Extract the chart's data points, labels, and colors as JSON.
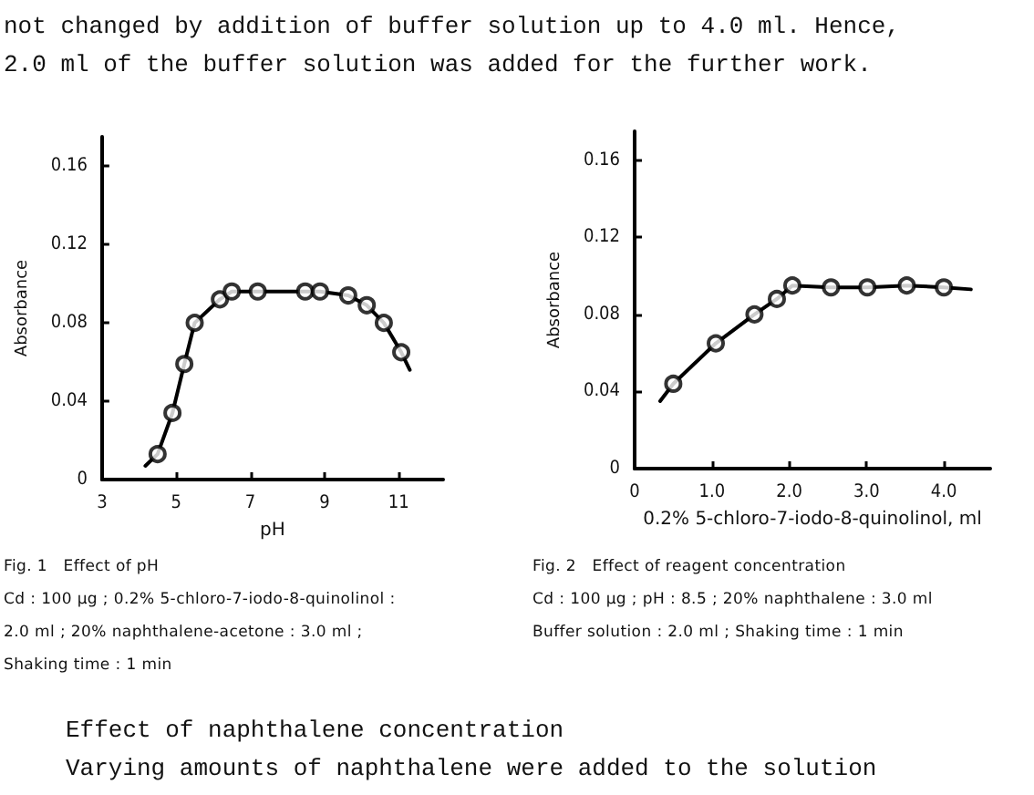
{
  "chart_data": [
    {
      "type": "other",
      "annotations": [
        "not changed by addition of buffer solution up to 4.0 ml. Hence,",
        "2.0 ml of the buffer solution was added for the further work."
      ]
    },
    {
      "type": "line",
      "title": "Fig. 1   Effect of pH",
      "xlabel": "pH",
      "ylabel": "Absorbance",
      "xlim": [
        3,
        12.2
      ],
      "ylim": [
        0,
        0.175
      ],
      "xticks": [
        3,
        5,
        7,
        9,
        11
      ],
      "yticks": [
        0,
        0.04,
        0.08,
        0.12,
        0.16
      ],
      "grid": false,
      "annotations": [
        "Cd : 100 μg ; 0.2% 5-chloro-7-iodo-8-quinolinol :",
        "2.0 ml ; 20% naphthalene-acetone : 3.0 ml ;",
        "Shaking time : 1 min"
      ],
      "series": [
        {
          "type": "line",
          "marker": "none",
          "color": "#000000",
          "x": [
            4.17,
            4.5,
            4.9,
            5.22,
            5.5,
            6.18,
            6.5,
            7.2,
            8.48,
            8.88,
            9.64,
            10.14,
            10.6,
            11.07,
            11.3
          ],
          "values": [
            0.007,
            0.013,
            0.034,
            0.059,
            0.08,
            0.092,
            0.096,
            0.096,
            0.096,
            0.096,
            0.094,
            0.089,
            0.08,
            0.065,
            0.056
          ]
        },
        {
          "type": "scatter",
          "marker": "circle",
          "color": "#000000",
          "x": [
            4.5,
            4.9,
            5.22,
            5.5,
            6.18,
            6.5,
            7.2,
            8.48,
            8.88,
            9.64,
            10.14,
            10.6,
            11.07
          ],
          "values": [
            0.013,
            0.034,
            0.059,
            0.08,
            0.092,
            0.096,
            0.096,
            0.096,
            0.096,
            0.094,
            0.089,
            0.08,
            0.065
          ]
        }
      ]
    },
    {
      "type": "line",
      "title": "Fig. 2   Effect of reagent concentration",
      "xlabel": "0.2% 5-chloro-7-iodo-8-quinolinol, ml",
      "ylabel": "Absorbance",
      "xlim": [
        0,
        4.6
      ],
      "ylim": [
        0,
        0.175
      ],
      "xticks": [
        0,
        {
          "value": 1,
          "label": "1.0"
        },
        {
          "value": 2,
          "label": "2.0"
        },
        {
          "value": 3,
          "label": "3.0"
        },
        {
          "value": 4,
          "label": "4.0"
        }
      ],
      "yticks": [
        0,
        0.04,
        0.08,
        0.12,
        0.16
      ],
      "grid": false,
      "annotations": [
        "Cd : 100 μg ; pH : 8.5 ; 20% naphthalene : 3.0 ml",
        "Buffer solution : 2.0 ml ; Shaking time : 1 min"
      ],
      "series": [
        {
          "type": "line",
          "marker": "none",
          "color": "#000000",
          "x": [
            0.33,
            0.5,
            1.05,
            1.55,
            1.84,
            2.04,
            2.54,
            3.01,
            3.52,
            4.0,
            4.35
          ],
          "values": [
            0.035,
            0.044,
            0.065,
            0.08,
            0.088,
            0.095,
            0.094,
            0.094,
            0.095,
            0.094,
            0.093
          ]
        },
        {
          "type": "scatter",
          "marker": "circle",
          "color": "#000000",
          "x": [
            0.5,
            1.05,
            1.55,
            1.84,
            2.04,
            2.54,
            3.01,
            3.52,
            4.0
          ],
          "values": [
            0.044,
            0.065,
            0.08,
            0.088,
            0.095,
            0.094,
            0.094,
            0.095,
            0.094
          ]
        }
      ]
    },
    {
      "type": "other",
      "annotations": [
        "Effect of naphthalene concentration",
        "Varying amounts of naphthalene were added to the solution"
      ]
    }
  ]
}
